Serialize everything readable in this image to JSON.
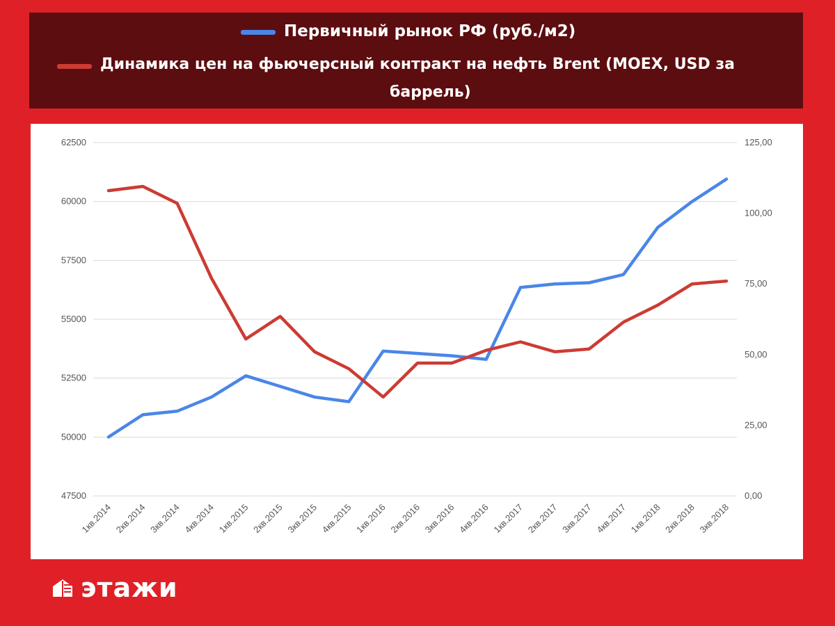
{
  "brand": {
    "name": "этажи"
  },
  "colors": {
    "background": "#e02027",
    "legend_bg": "#5c0d0f",
    "primary_series": "#4a86e8",
    "oil_series": "#cc3b33"
  },
  "chart_data": {
    "type": "line",
    "title": "",
    "legend": [
      {
        "name": "Первичный рынок РФ (руб./м2)",
        "color": "#4a86e8"
      },
      {
        "name_line1": "Динамика цен на фьючерсный контракт на нефть Brent (MOEX, USD за",
        "name_line2": "баррель)",
        "color": "#cc3b33"
      }
    ],
    "categories": [
      "1кв.2014",
      "2кв.2014",
      "3кв.2014",
      "4кв.2014",
      "1кв.2015",
      "2кв.2015",
      "3кв.2015",
      "4кв.2015",
      "1кв.2016",
      "2кв.2016",
      "3кв.2016",
      "4кв.2016",
      "1кв.2017",
      "2кв.2017",
      "3кв.2017",
      "4кв.2017",
      "1кв.2018",
      "2кв.2018",
      "3кв.2018"
    ],
    "y_left": {
      "ylim": [
        47500,
        62500
      ],
      "ticks": [
        "47500",
        "50000",
        "52500",
        "55000",
        "57500",
        "60000",
        "62500"
      ]
    },
    "y_right": {
      "ylim": [
        0,
        125
      ],
      "ticks": [
        "0,00",
        "25,00",
        "50,00",
        "75,00",
        "100,00",
        "125,00"
      ]
    },
    "series": [
      {
        "name": "Первичный рынок РФ (руб./м2)",
        "axis": "left",
        "color": "#4a86e8",
        "values": [
          50000,
          50950,
          51100,
          51700,
          52600,
          52150,
          51700,
          51500,
          53650,
          53550,
          53450,
          53300,
          56350,
          56500,
          56550,
          56900,
          58900,
          60000,
          60950
        ]
      },
      {
        "name": "Динамика цен на фьючерсный контракт на нефть Brent (MOEX, USD за баррель)",
        "axis": "right",
        "color": "#cc3b33",
        "values": [
          108,
          109.5,
          103.5,
          77,
          55.5,
          63.5,
          51,
          45,
          35,
          47,
          47,
          51.5,
          54.5,
          51,
          52,
          61.5,
          67.5,
          75,
          76
        ]
      }
    ],
    "grid": true
  }
}
